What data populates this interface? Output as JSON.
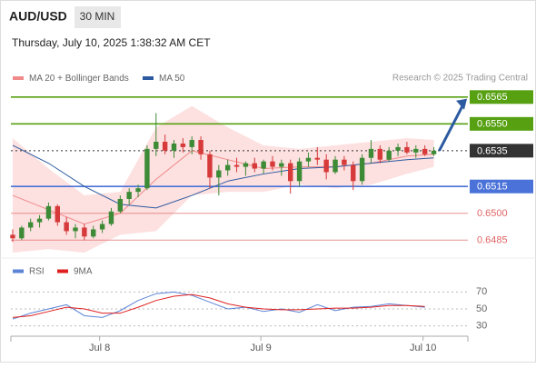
{
  "header": {
    "symbol": "AUD/USD",
    "timeframe": "30 MIN",
    "datetime": "Thursday, July 10, 2025 1:38:32 AM CET"
  },
  "chart_data": [
    {
      "type": "candlestick",
      "source": "Research © 2025 Trading Central",
      "xlim": [
        -0.2,
        50.8
      ],
      "ylim": [
        0.6477,
        0.6571
      ],
      "xticks": [
        {
          "value": 9.7,
          "label": "Jul 8"
        },
        {
          "value": 27.7,
          "label": "Jul 9"
        },
        {
          "value": 45.8,
          "label": "Jul 10"
        }
      ],
      "ohlc": [
        [
          0.6488,
          0.6491,
          0.6484,
          0.6486
        ],
        [
          0.6486,
          0.6493,
          0.6485,
          0.6492
        ],
        [
          0.6492,
          0.6497,
          0.649,
          0.6495
        ],
        [
          0.6495,
          0.6499,
          0.6492,
          0.6497
        ],
        [
          0.6497,
          0.6506,
          0.6496,
          0.6504
        ],
        [
          0.6504,
          0.6505,
          0.6493,
          0.6495
        ],
        [
          0.6495,
          0.6498,
          0.6488,
          0.649
        ],
        [
          0.649,
          0.6494,
          0.6486,
          0.6492
        ],
        [
          0.6492,
          0.6494,
          0.6485,
          0.6487
        ],
        [
          0.6487,
          0.6493,
          0.6486,
          0.6491
        ],
        [
          0.6491,
          0.6496,
          0.6489,
          0.6494
        ],
        [
          0.6494,
          0.6503,
          0.6493,
          0.6501
        ],
        [
          0.6501,
          0.651,
          0.65,
          0.6508
        ],
        [
          0.6508,
          0.6514,
          0.6505,
          0.6512
        ],
        [
          0.6512,
          0.6516,
          0.6509,
          0.6514
        ],
        [
          0.6514,
          0.6538,
          0.6513,
          0.6536
        ],
        [
          0.6536,
          0.6556,
          0.6532,
          0.654
        ],
        [
          0.654,
          0.6544,
          0.6533,
          0.6535
        ],
        [
          0.6535,
          0.6541,
          0.6531,
          0.6539
        ],
        [
          0.6539,
          0.6542,
          0.6534,
          0.6537
        ],
        [
          0.6537,
          0.6543,
          0.6533,
          0.6541
        ],
        [
          0.6541,
          0.6543,
          0.653,
          0.6533
        ],
        [
          0.6533,
          0.6535,
          0.6514,
          0.652
        ],
        [
          0.652,
          0.6527,
          0.651,
          0.6524
        ],
        [
          0.6524,
          0.653,
          0.6521,
          0.6527
        ],
        [
          0.6527,
          0.6531,
          0.6523,
          0.6526
        ],
        [
          0.6526,
          0.6529,
          0.6521,
          0.6528
        ],
        [
          0.6528,
          0.6531,
          0.6523,
          0.6525
        ],
        [
          0.6525,
          0.653,
          0.6522,
          0.6529
        ],
        [
          0.6529,
          0.6532,
          0.6524,
          0.6526
        ],
        [
          0.6526,
          0.653,
          0.6521,
          0.6528
        ],
        [
          0.6528,
          0.653,
          0.6511,
          0.6518
        ],
        [
          0.6518,
          0.6531,
          0.6515,
          0.6529
        ],
        [
          0.6529,
          0.6534,
          0.6526,
          0.6531
        ],
        [
          0.6531,
          0.6537,
          0.6527,
          0.653
        ],
        [
          0.653,
          0.6533,
          0.6519,
          0.6523
        ],
        [
          0.6523,
          0.6532,
          0.6522,
          0.653
        ],
        [
          0.653,
          0.6532,
          0.6524,
          0.6527
        ],
        [
          0.6527,
          0.6529,
          0.6513,
          0.6518
        ],
        [
          0.6518,
          0.6533,
          0.6516,
          0.6531
        ],
        [
          0.6531,
          0.6541,
          0.6528,
          0.6536
        ],
        [
          0.6536,
          0.6538,
          0.6528,
          0.653
        ],
        [
          0.653,
          0.6537,
          0.6529,
          0.6535
        ],
        [
          0.6535,
          0.6539,
          0.6532,
          0.6537
        ],
        [
          0.6537,
          0.654,
          0.6533,
          0.6534
        ],
        [
          0.6534,
          0.6538,
          0.6531,
          0.6536
        ],
        [
          0.6536,
          0.6538,
          0.6532,
          0.6533
        ],
        [
          0.6533,
          0.6537,
          0.6532,
          0.6535
        ]
      ],
      "up_color": "#3d8b37",
      "down_color": "#d63a3a",
      "series": [
        {
          "name": "MA 20 + Bollinger Bands",
          "color": "#f08a8a",
          "band_color": "#fde0e0",
          "x": [
            0,
            4,
            8,
            12,
            16,
            20,
            24,
            28,
            32,
            36,
            40,
            44,
            47
          ],
          "values": [
            0.651,
            0.6502,
            0.6494,
            0.65,
            0.6519,
            0.6535,
            0.653,
            0.6525,
            0.6526,
            0.6526,
            0.6528,
            0.6532,
            0.6533
          ],
          "upper": [
            0.6542,
            0.6525,
            0.651,
            0.6512,
            0.6548,
            0.656,
            0.6548,
            0.6538,
            0.6536,
            0.6538,
            0.654,
            0.6542,
            0.6541
          ],
          "lower": [
            0.6478,
            0.648,
            0.6478,
            0.6488,
            0.649,
            0.651,
            0.6512,
            0.6512,
            0.6516,
            0.6514,
            0.6516,
            0.6522,
            0.6526
          ]
        },
        {
          "name": "MA 50",
          "color": "#2c5aa0",
          "x": [
            0,
            4,
            8,
            12,
            16,
            20,
            24,
            28,
            32,
            36,
            40,
            44,
            47
          ],
          "values": [
            0.6538,
            0.6528,
            0.6515,
            0.6505,
            0.6503,
            0.651,
            0.6518,
            0.6522,
            0.6525,
            0.6526,
            0.6528,
            0.653,
            0.6531
          ]
        }
      ],
      "levels": [
        {
          "value": 0.6565,
          "color": "#56a011",
          "box": true
        },
        {
          "value": 0.655,
          "label": "0.6550",
          "color": "#56a011",
          "box": true
        },
        {
          "value": 0.6535,
          "color": "#333333",
          "box": true,
          "dotted": true
        },
        {
          "value": 0.6515,
          "color": "#4a72d8",
          "box": true
        },
        {
          "value": 0.65,
          "label": "0.6500",
          "color": "#e06666",
          "box": false
        },
        {
          "value": 0.6485,
          "color": "#e06666",
          "box": false
        }
      ]
    },
    {
      "type": "line",
      "xlim": [
        -0.2,
        50.8
      ],
      "ylim": [
        20,
        80
      ],
      "yticks": [
        30,
        50,
        70
      ],
      "series": [
        {
          "name": "RSI",
          "color": "#5b84d6",
          "x": [
            0,
            2,
            4,
            6,
            8,
            10,
            12,
            14,
            16,
            18,
            20,
            22,
            24,
            26,
            28,
            30,
            32,
            34,
            36,
            38,
            40,
            42,
            44,
            46
          ],
          "values": [
            38,
            45,
            50,
            55,
            42,
            40,
            48,
            60,
            68,
            70,
            66,
            58,
            50,
            52,
            47,
            50,
            46,
            55,
            48,
            52,
            53,
            56,
            54,
            52
          ]
        },
        {
          "name": "9MA",
          "color": "#e02020",
          "x": [
            0,
            2,
            4,
            6,
            8,
            10,
            12,
            14,
            16,
            18,
            20,
            22,
            24,
            26,
            28,
            30,
            32,
            34,
            36,
            38,
            40,
            42,
            44,
            46
          ],
          "values": [
            40,
            42,
            47,
            52,
            50,
            45,
            45,
            52,
            60,
            65,
            67,
            63,
            56,
            52,
            50,
            49,
            49,
            50,
            51,
            51,
            52,
            54,
            54,
            53
          ]
        }
      ]
    }
  ]
}
